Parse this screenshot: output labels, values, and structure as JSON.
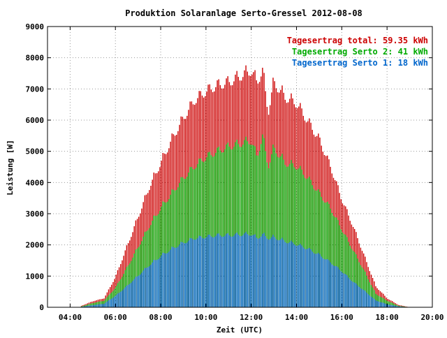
{
  "chart_data": {
    "type": "bar",
    "title": "Produktion Solaranlage Serto-Gressel 2012-08-08",
    "xlabel": "Zeit (UTC)",
    "ylabel": "Leistung [W]",
    "xlim": [
      "03:00",
      "20:00"
    ],
    "ylim": [
      0,
      9000
    ],
    "x_ticks": [
      "04:00",
      "06:00",
      "08:00",
      "10:00",
      "12:00",
      "14:00",
      "16:00",
      "18:00",
      "20:00"
    ],
    "y_ticks": [
      "0",
      "1000",
      "2000",
      "3000",
      "4000",
      "5000",
      "6000",
      "7000",
      "8000",
      "9000"
    ],
    "grid": true,
    "legend_position": "top-right",
    "colors": {
      "total": "#cc0000",
      "serto2": "#00aa00",
      "serto1": "#0066cc"
    },
    "x": [
      "04:30",
      "05:00",
      "05:30",
      "06:00",
      "06:30",
      "07:00",
      "07:30",
      "08:00",
      "08:30",
      "09:00",
      "09:30",
      "10:00",
      "10:30",
      "11:00",
      "11:30",
      "12:00",
      "12:15",
      "12:30",
      "12:45",
      "13:00",
      "13:30",
      "14:00",
      "14:30",
      "15:00",
      "15:30",
      "16:00",
      "16:30",
      "17:00",
      "17:30",
      "18:00",
      "18:30",
      "19:00"
    ],
    "series": [
      {
        "name": "Tagesertrag total: 59.35 kWh",
        "key": "total",
        "values": [
          50,
          200,
          300,
          1000,
          2000,
          3000,
          4000,
          4800,
          5600,
          6300,
          6900,
          7200,
          7400,
          7500,
          7700,
          7900,
          7500,
          7900,
          6500,
          7500,
          7000,
          6800,
          6200,
          5600,
          4700,
          3600,
          2700,
          1700,
          700,
          300,
          80,
          0
        ]
      },
      {
        "name": "Tagesertrag Serto 2: 41 kWh",
        "key": "serto2",
        "values": [
          30,
          140,
          220,
          650,
          1300,
          2000,
          2700,
          3300,
          3800,
          4300,
          4700,
          5000,
          5200,
          5350,
          5450,
          5550,
          5000,
          5700,
          4700,
          5300,
          4800,
          4700,
          4300,
          3800,
          3300,
          2600,
          1900,
          1200,
          450,
          220,
          50,
          0
        ]
      },
      {
        "name": "Tagesertrag Serto 1: 18 kWh",
        "key": "serto1",
        "values": [
          15,
          70,
          120,
          380,
          700,
          1050,
          1400,
          1700,
          1950,
          2150,
          2300,
          2350,
          2400,
          2400,
          2420,
          2440,
          2300,
          2420,
          2300,
          2330,
          2200,
          2100,
          1950,
          1750,
          1500,
          1200,
          850,
          550,
          230,
          100,
          30,
          0
        ]
      }
    ]
  }
}
